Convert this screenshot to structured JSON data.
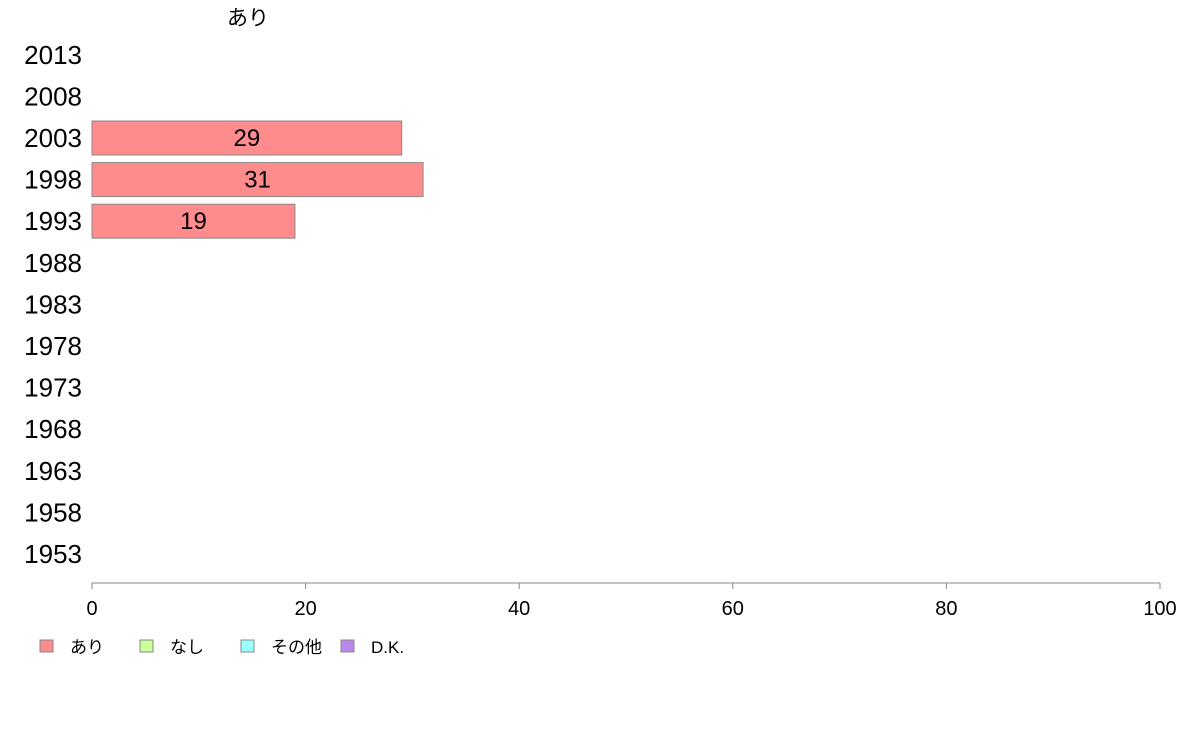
{
  "chart_data": {
    "type": "bar",
    "orientation": "horizontal",
    "stacked": true,
    "title": "",
    "xlabel": "",
    "ylabel": "",
    "top_series_label": "あり",
    "categories": [
      "2013",
      "2008",
      "2003",
      "1998",
      "1993",
      "1988",
      "1983",
      "1978",
      "1973",
      "1968",
      "1963",
      "1958",
      "1953"
    ],
    "series": [
      {
        "name": "あり",
        "color": "#ff8c8c",
        "values": [
          null,
          null,
          29,
          31,
          19,
          null,
          null,
          null,
          null,
          null,
          null,
          null,
          null
        ]
      },
      {
        "name": "なし",
        "color": "#ccff99",
        "values": [
          null,
          null,
          null,
          null,
          null,
          null,
          null,
          null,
          null,
          null,
          null,
          null,
          null
        ]
      },
      {
        "name": "その他",
        "color": "#99ffff",
        "values": [
          null,
          null,
          null,
          null,
          null,
          null,
          null,
          null,
          null,
          null,
          null,
          null,
          null
        ]
      },
      {
        "name": "D.K.",
        "color": "#bb88ee",
        "values": [
          null,
          null,
          null,
          null,
          null,
          null,
          null,
          null,
          null,
          null,
          null,
          null,
          null
        ]
      }
    ],
    "xlim": [
      0,
      100
    ],
    "xticks": [
      "0",
      "20",
      "40",
      "60",
      "80",
      "100"
    ],
    "grid": false,
    "legend_position": "bottom-left"
  }
}
